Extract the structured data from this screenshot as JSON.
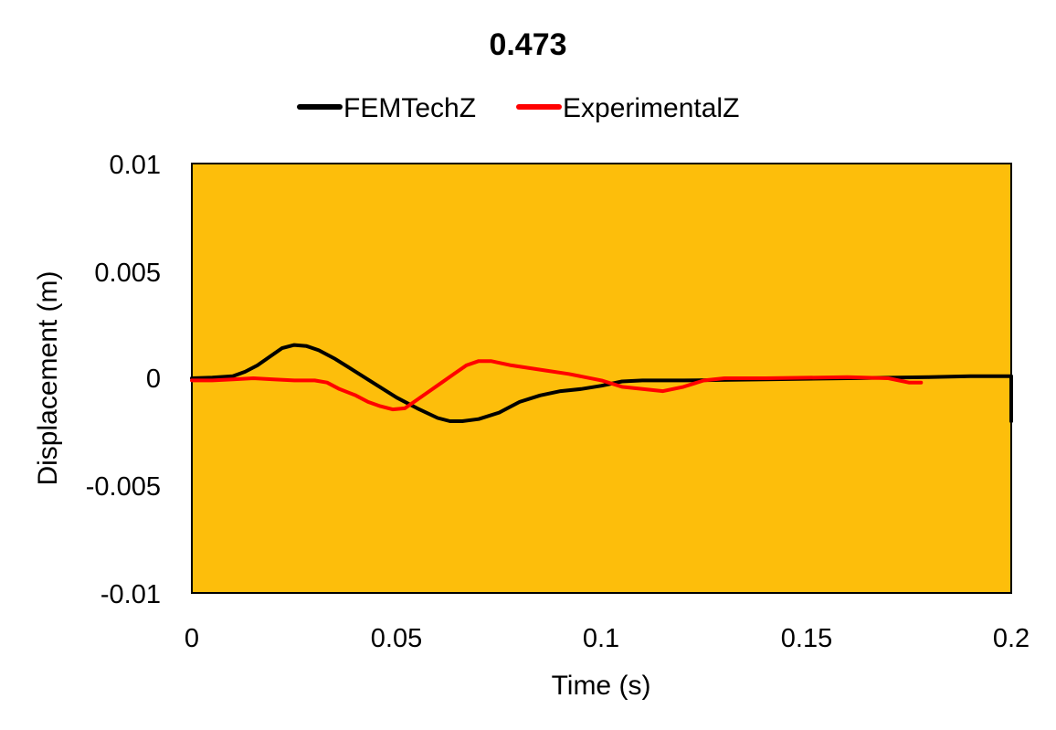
{
  "chart_data": {
    "type": "line",
    "title": "0.473",
    "xlabel": "Time (s)",
    "ylabel": "Displacement (m)",
    "xlim": [
      0,
      0.2
    ],
    "ylim": [
      -0.01,
      0.01
    ],
    "x_ticks": [
      "0",
      "0.05",
      "0.1",
      "0.15",
      "0.2"
    ],
    "y_ticks": [
      "0.01",
      "0.005",
      "0",
      "-0.005",
      "-0.01"
    ],
    "grid": false,
    "legend_position": "top",
    "plot_background": "#FDBE0B",
    "series": [
      {
        "name": "FEMTechZ",
        "color": "#000000",
        "points": [
          [
            0,
            0
          ],
          [
            0.005,
            3e-05
          ],
          [
            0.01,
            0.0001
          ],
          [
            0.013,
            0.0003
          ],
          [
            0.016,
            0.0006
          ],
          [
            0.019,
            0.001
          ],
          [
            0.022,
            0.0014
          ],
          [
            0.025,
            0.00155
          ],
          [
            0.028,
            0.0015
          ],
          [
            0.031,
            0.0013
          ],
          [
            0.035,
            0.0009
          ],
          [
            0.04,
            0.0003
          ],
          [
            0.045,
            -0.0003
          ],
          [
            0.05,
            -0.0009
          ],
          [
            0.055,
            -0.0014
          ],
          [
            0.06,
            -0.00185
          ],
          [
            0.063,
            -0.002
          ],
          [
            0.066,
            -0.002
          ],
          [
            0.07,
            -0.0019
          ],
          [
            0.075,
            -0.0016
          ],
          [
            0.08,
            -0.0011
          ],
          [
            0.085,
            -0.0008
          ],
          [
            0.09,
            -0.0006
          ],
          [
            0.095,
            -0.0005
          ],
          [
            0.1,
            -0.00035
          ],
          [
            0.105,
            -0.00015
          ],
          [
            0.11,
            -0.0001
          ],
          [
            0.12,
            -0.0001
          ],
          [
            0.14,
            -5e-05
          ],
          [
            0.16,
            0.0
          ],
          [
            0.18,
            5e-05
          ],
          [
            0.19,
            0.0001
          ],
          [
            0.2,
            0.0001
          ],
          [
            0.2,
            -0.002
          ]
        ]
      },
      {
        "name": "ExperimentalZ",
        "color": "#FF0000",
        "points": [
          [
            0,
            -0.0001
          ],
          [
            0.005,
            -0.0001
          ],
          [
            0.01,
            -5e-05
          ],
          [
            0.015,
            0.0
          ],
          [
            0.02,
            -5e-05
          ],
          [
            0.025,
            -0.0001
          ],
          [
            0.03,
            -0.0001
          ],
          [
            0.033,
            -0.0002
          ],
          [
            0.036,
            -0.0005
          ],
          [
            0.04,
            -0.0008
          ],
          [
            0.043,
            -0.0011
          ],
          [
            0.046,
            -0.0013
          ],
          [
            0.049,
            -0.00145
          ],
          [
            0.052,
            -0.0014
          ],
          [
            0.055,
            -0.001
          ],
          [
            0.058,
            -0.0006
          ],
          [
            0.061,
            -0.0002
          ],
          [
            0.064,
            0.0002
          ],
          [
            0.067,
            0.0006
          ],
          [
            0.07,
            0.0008
          ],
          [
            0.073,
            0.0008
          ],
          [
            0.078,
            0.0006
          ],
          [
            0.085,
            0.0004
          ],
          [
            0.092,
            0.0002
          ],
          [
            0.1,
            -0.0001
          ],
          [
            0.105,
            -0.0004
          ],
          [
            0.11,
            -0.0005
          ],
          [
            0.115,
            -0.0006
          ],
          [
            0.12,
            -0.0004
          ],
          [
            0.125,
            -0.0001
          ],
          [
            0.13,
            0.0
          ],
          [
            0.14,
            0.0
          ],
          [
            0.16,
            5e-05
          ],
          [
            0.17,
            0.0
          ],
          [
            0.175,
            -0.0002
          ],
          [
            0.178,
            -0.0002
          ]
        ]
      }
    ]
  }
}
